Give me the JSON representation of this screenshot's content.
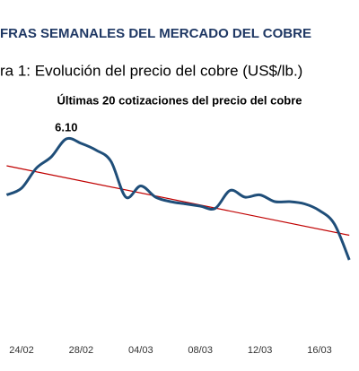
{
  "chart_data": {
    "type": "line",
    "title": "FRAS SEMANALES DEL MERCADO DEL COBRE",
    "subtitle": "ra 1: Evolución del precio del cobre (US$/lb.)",
    "caption": "Últimas 20 cotizaciones del precio del cobre",
    "categories": [
      null,
      "24/02",
      null,
      null,
      null,
      "28/02",
      null,
      null,
      null,
      "04/03",
      null,
      null,
      null,
      "08/03",
      null,
      null,
      null,
      "12/03",
      null,
      null,
      null,
      "16/03",
      null,
      null
    ],
    "series": [
      {
        "color": "#1f4e79",
        "values": [
          5.85,
          5.88,
          5.97,
          6.02,
          6.1,
          6.08,
          6.05,
          6.0,
          5.84,
          5.89,
          5.84,
          5.82,
          5.81,
          5.8,
          5.79,
          5.87,
          5.84,
          5.85,
          5.82,
          5.82,
          5.81,
          5.78,
          5.72,
          5.56
        ],
        "value_labels": [
          null,
          null,
          null,
          null,
          "6.10",
          null,
          null,
          null,
          null,
          null,
          null,
          null,
          null,
          null,
          null,
          null,
          null,
          null,
          null,
          null,
          null,
          null,
          null,
          null
        ]
      }
    ],
    "trendline": {
      "color": "#c00000",
      "values": [
        5.98,
        5.67
      ]
    },
    "ylim": [
      5.2,
      6.32
    ]
  }
}
